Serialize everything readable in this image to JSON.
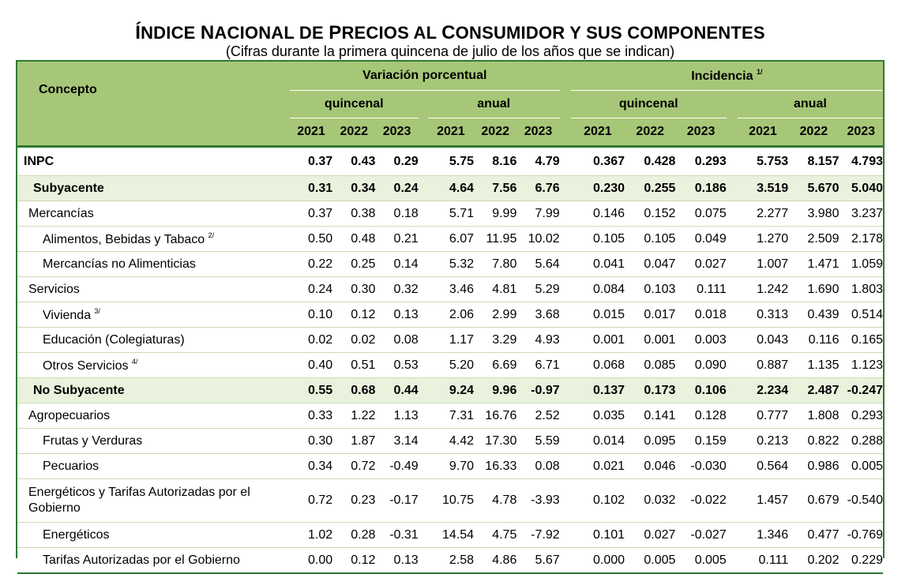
{
  "title": {
    "first_letter_1": "Í",
    "rest_1": "NDICE ",
    "first_letter_2": "N",
    "rest_2": "ACIONAL DE ",
    "first_letter_3": "P",
    "rest_3": "RECIOS AL ",
    "first_letter_4": "C",
    "rest_4": "ONSUMIDOR Y SUS COMPONENTES"
  },
  "subtitle": "(Cifras durante la primera quincena de julio de los años que se indican)",
  "header": {
    "concept": "Concepto",
    "variacion": "Variación porcentual",
    "incidencia": "Incidencia",
    "incidencia_note": "1/",
    "quincenal": "quincenal",
    "anual": "anual",
    "years": [
      "2021",
      "2022",
      "2023"
    ]
  },
  "rows": [
    {
      "label": "INPC",
      "note": "",
      "vq": [
        "0.37",
        "0.43",
        "0.29"
      ],
      "va": [
        "5.75",
        "8.16",
        "4.79"
      ],
      "iq": [
        "0.367",
        "0.428",
        "0.293"
      ],
      "ia": [
        "5.753",
        "8.157",
        "4.793"
      ]
    },
    {
      "label": "Subyacente",
      "note": "",
      "vq": [
        "0.31",
        "0.34",
        "0.24"
      ],
      "va": [
        "4.64",
        "7.56",
        "6.76"
      ],
      "iq": [
        "0.230",
        "0.255",
        "0.186"
      ],
      "ia": [
        "3.519",
        "5.670",
        "5.040"
      ]
    },
    {
      "label": "Mercancías",
      "note": "",
      "vq": [
        "0.37",
        "0.38",
        "0.18"
      ],
      "va": [
        "5.71",
        "9.99",
        "7.99"
      ],
      "iq": [
        "0.146",
        "0.152",
        "0.075"
      ],
      "ia": [
        "2.277",
        "3.980",
        "3.237"
      ]
    },
    {
      "label": "Alimentos, Bebidas y Tabaco",
      "note": "2/",
      "vq": [
        "0.50",
        "0.48",
        "0.21"
      ],
      "va": [
        "6.07",
        "11.95",
        "10.02"
      ],
      "iq": [
        "0.105",
        "0.105",
        "0.049"
      ],
      "ia": [
        "1.270",
        "2.509",
        "2.178"
      ]
    },
    {
      "label": "Mercancías no Alimenticias",
      "note": "",
      "vq": [
        "0.22",
        "0.25",
        "0.14"
      ],
      "va": [
        "5.32",
        "7.80",
        "5.64"
      ],
      "iq": [
        "0.041",
        "0.047",
        "0.027"
      ],
      "ia": [
        "1.007",
        "1.471",
        "1.059"
      ]
    },
    {
      "label": "Servicios",
      "note": "",
      "vq": [
        "0.24",
        "0.30",
        "0.32"
      ],
      "va": [
        "3.46",
        "4.81",
        "5.29"
      ],
      "iq": [
        "0.084",
        "0.103",
        "0.111"
      ],
      "ia": [
        "1.242",
        "1.690",
        "1.803"
      ]
    },
    {
      "label": "Vivienda",
      "note": "3/",
      "vq": [
        "0.10",
        "0.12",
        "0.13"
      ],
      "va": [
        "2.06",
        "2.99",
        "3.68"
      ],
      "iq": [
        "0.015",
        "0.017",
        "0.018"
      ],
      "ia": [
        "0.313",
        "0.439",
        "0.514"
      ]
    },
    {
      "label": "Educación (Colegiaturas)",
      "note": "",
      "vq": [
        "0.02",
        "0.02",
        "0.08"
      ],
      "va": [
        "1.17",
        "3.29",
        "4.93"
      ],
      "iq": [
        "0.001",
        "0.001",
        "0.003"
      ],
      "ia": [
        "0.043",
        "0.116",
        "0.165"
      ]
    },
    {
      "label": "Otros Servicios",
      "note": "4/",
      "vq": [
        "0.40",
        "0.51",
        "0.53"
      ],
      "va": [
        "5.20",
        "6.69",
        "6.71"
      ],
      "iq": [
        "0.068",
        "0.085",
        "0.090"
      ],
      "ia": [
        "0.887",
        "1.135",
        "1.123"
      ]
    },
    {
      "label": "No Subyacente",
      "note": "",
      "vq": [
        "0.55",
        "0.68",
        "0.44"
      ],
      "va": [
        "9.24",
        "9.96",
        "-0.97"
      ],
      "iq": [
        "0.137",
        "0.173",
        "0.106"
      ],
      "ia": [
        "2.234",
        "2.487",
        "-0.247"
      ]
    },
    {
      "label": "Agropecuarios",
      "note": "",
      "vq": [
        "0.33",
        "1.22",
        "1.13"
      ],
      "va": [
        "7.31",
        "16.76",
        "2.52"
      ],
      "iq": [
        "0.035",
        "0.141",
        "0.128"
      ],
      "ia": [
        "0.777",
        "1.808",
        "0.293"
      ]
    },
    {
      "label": "Frutas y Verduras",
      "note": "",
      "vq": [
        "0.30",
        "1.87",
        "3.14"
      ],
      "va": [
        "4.42",
        "17.30",
        "5.59"
      ],
      "iq": [
        "0.014",
        "0.095",
        "0.159"
      ],
      "ia": [
        "0.213",
        "0.822",
        "0.288"
      ]
    },
    {
      "label": "Pecuarios",
      "note": "",
      "vq": [
        "0.34",
        "0.72",
        "-0.49"
      ],
      "va": [
        "9.70",
        "16.33",
        "0.08"
      ],
      "iq": [
        "0.021",
        "0.046",
        "-0.030"
      ],
      "ia": [
        "0.564",
        "0.986",
        "0.005"
      ]
    },
    {
      "label": "Energéticos y Tarifas Autorizadas por el Gobierno",
      "note": "",
      "vq": [
        "0.72",
        "0.23",
        "-0.17"
      ],
      "va": [
        "10.75",
        "4.78",
        "-3.93"
      ],
      "iq": [
        "0.102",
        "0.032",
        "-0.022"
      ],
      "ia": [
        "1.457",
        "0.679",
        "-0.540"
      ]
    },
    {
      "label": "Energéticos",
      "note": "",
      "vq": [
        "1.02",
        "0.28",
        "-0.31"
      ],
      "va": [
        "14.54",
        "4.75",
        "-7.92"
      ],
      "iq": [
        "0.101",
        "0.027",
        "-0.027"
      ],
      "ia": [
        "1.346",
        "0.477",
        "-0.769"
      ]
    },
    {
      "label": "Tarifas Autorizadas por el Gobierno",
      "note": "",
      "vq": [
        "0.00",
        "0.12",
        "0.13"
      ],
      "va": [
        "2.58",
        "4.86",
        "5.67"
      ],
      "iq": [
        "0.000",
        "0.005",
        "0.005"
      ],
      "ia": [
        "0.111",
        "0.202",
        "0.229"
      ]
    }
  ],
  "colors": {
    "header_bg": "#a7c778",
    "border": "#2f7a34",
    "highlight_row": "#eaf2dd"
  }
}
